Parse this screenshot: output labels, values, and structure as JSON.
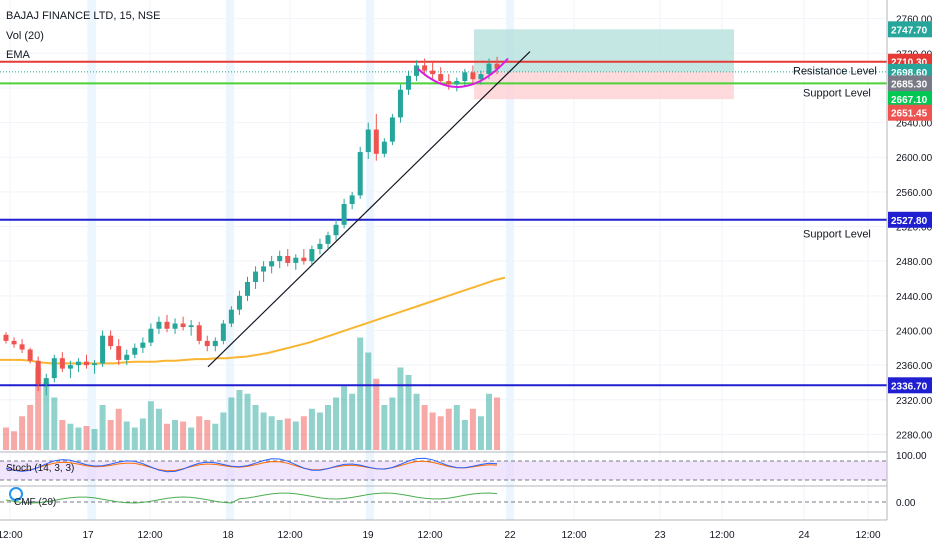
{
  "header": {
    "title": "BAJAJ FINANCE LTD, 15, NSE",
    "vol_label": "Vol (20)",
    "ema_label": "EMA"
  },
  "indicators": {
    "stoch_label": "Stoch (14, 3, 3)",
    "cmf_label": "CMF (20)",
    "stoch_axis_label": "100.00",
    "cmf_axis_label": "0.00"
  },
  "chart_data": {
    "type": "candlestick",
    "symbol": "BAJAJ FINANCE LTD",
    "interval": "15",
    "exchange": "NSE",
    "y_ticks": [
      2280,
      2320,
      2360,
      2400,
      2440,
      2480,
      2520,
      2560,
      2600,
      2640,
      2680,
      2720,
      2760
    ],
    "y_tick_labels": [
      "2280.00",
      "2320.00",
      "2360.00",
      "2400.00",
      "2440.00",
      "2480.00",
      "2520.00",
      "2560.00",
      "2600.00",
      "2640.00",
      "2680.00",
      "2720.00",
      "2760.00"
    ],
    "x_tick_labels": [
      "12:00",
      "17",
      "12:00",
      "18",
      "12:00",
      "19",
      "12:00",
      "22",
      "12:00",
      "23",
      "12:00",
      "24",
      "12:00"
    ],
    "price_tags": [
      {
        "value": 2747.7,
        "label": "2747.70",
        "color": "#26a69a"
      },
      {
        "value": 2710.3,
        "label": "2710.30",
        "color": "#e53935"
      },
      {
        "value": 2698.6,
        "label": "2698.60",
        "color": "#26a69a"
      },
      {
        "value": 2685.3,
        "label": "2685.30",
        "color": "#787b86"
      },
      {
        "value": 2667.1,
        "label": "2667.10",
        "color": "#00c853"
      },
      {
        "value": 2651.45,
        "label": "2651.45",
        "color": "#ef5350"
      },
      {
        "value": 2527.8,
        "label": "2527.80",
        "color": "#1f1fd1"
      },
      {
        "value": 2336.7,
        "label": "2336.70",
        "color": "#1f1fd1"
      }
    ],
    "horizontal_levels": [
      {
        "value": 2710.3,
        "color": "#e53935"
      },
      {
        "value": 2685.3,
        "color": "#4cd137"
      },
      {
        "value": 2527.8,
        "color": "#1f1fd1"
      },
      {
        "value": 2336.7,
        "color": "#1f1fd1"
      }
    ],
    "annotations": [
      {
        "text": "Resistance Level",
        "value": 2700
      },
      {
        "text": "Support Level",
        "value": 2675
      },
      {
        "text": "Support Level",
        "value": 2512
      }
    ],
    "position_box": {
      "target": 2747.7,
      "entry": 2698.6,
      "stop": 2667.1
    },
    "candles": [
      [
        2395,
        2398,
        2385,
        2388
      ],
      [
        2388,
        2392,
        2380,
        2384
      ],
      [
        2384,
        2390,
        2374,
        2378
      ],
      [
        2378,
        2380,
        2362,
        2365
      ],
      [
        2365,
        2370,
        2330,
        2338
      ],
      [
        2338,
        2350,
        2325,
        2345
      ],
      [
        2345,
        2372,
        2340,
        2368
      ],
      [
        2368,
        2375,
        2352,
        2356
      ],
      [
        2356,
        2365,
        2345,
        2360
      ],
      [
        2360,
        2368,
        2352,
        2364
      ],
      [
        2364,
        2372,
        2356,
        2360
      ],
      [
        2360,
        2366,
        2350,
        2362
      ],
      [
        2362,
        2400,
        2358,
        2394
      ],
      [
        2394,
        2400,
        2378,
        2382
      ],
      [
        2382,
        2390,
        2360,
        2366
      ],
      [
        2366,
        2378,
        2360,
        2372
      ],
      [
        2372,
        2385,
        2368,
        2380
      ],
      [
        2380,
        2392,
        2374,
        2386
      ],
      [
        2386,
        2408,
        2382,
        2402
      ],
      [
        2402,
        2416,
        2396,
        2410
      ],
      [
        2410,
        2418,
        2398,
        2402
      ],
      [
        2402,
        2414,
        2396,
        2408
      ],
      [
        2408,
        2416,
        2400,
        2404
      ],
      [
        2404,
        2412,
        2394,
        2406
      ],
      [
        2406,
        2410,
        2384,
        2388
      ],
      [
        2388,
        2394,
        2376,
        2382
      ],
      [
        2382,
        2392,
        2376,
        2388
      ],
      [
        2388,
        2412,
        2384,
        2408
      ],
      [
        2408,
        2428,
        2404,
        2424
      ],
      [
        2424,
        2446,
        2418,
        2440
      ],
      [
        2440,
        2462,
        2434,
        2456
      ],
      [
        2456,
        2474,
        2448,
        2468
      ],
      [
        2468,
        2480,
        2456,
        2474
      ],
      [
        2474,
        2486,
        2466,
        2480
      ],
      [
        2480,
        2492,
        2472,
        2486
      ],
      [
        2486,
        2494,
        2474,
        2478
      ],
      [
        2478,
        2488,
        2470,
        2484
      ],
      [
        2484,
        2494,
        2476,
        2480
      ],
      [
        2480,
        2498,
        2476,
        2494
      ],
      [
        2494,
        2506,
        2488,
        2500
      ],
      [
        2500,
        2514,
        2494,
        2510
      ],
      [
        2510,
        2528,
        2504,
        2522
      ],
      [
        2522,
        2552,
        2518,
        2546
      ],
      [
        2546,
        2560,
        2540,
        2556
      ],
      [
        2556,
        2612,
        2552,
        2606
      ],
      [
        2606,
        2640,
        2598,
        2632
      ],
      [
        2632,
        2650,
        2596,
        2604
      ],
      [
        2604,
        2622,
        2600,
        2618
      ],
      [
        2618,
        2650,
        2614,
        2646
      ],
      [
        2646,
        2684,
        2640,
        2678
      ],
      [
        2678,
        2700,
        2672,
        2694
      ],
      [
        2694,
        2712,
        2688,
        2706
      ],
      [
        2706,
        2714,
        2694,
        2700
      ],
      [
        2700,
        2710,
        2690,
        2696
      ],
      [
        2696,
        2704,
        2684,
        2688
      ],
      [
        2688,
        2696,
        2678,
        2684
      ],
      [
        2684,
        2692,
        2676,
        2688
      ],
      [
        2688,
        2702,
        2682,
        2698
      ],
      [
        2698,
        2706,
        2684,
        2690
      ],
      [
        2690,
        2700,
        2684,
        2696
      ],
      [
        2696,
        2714,
        2690,
        2708
      ],
      [
        2708,
        2716,
        2696,
        2702
      ]
    ],
    "volumes": [
      30,
      25,
      45,
      60,
      110,
      90,
      70,
      40,
      35,
      30,
      32,
      28,
      60,
      40,
      55,
      38,
      30,
      42,
      65,
      55,
      35,
      40,
      38,
      30,
      45,
      40,
      35,
      50,
      70,
      80,
      75,
      60,
      50,
      45,
      40,
      42,
      38,
      45,
      55,
      50,
      60,
      70,
      85,
      75,
      150,
      130,
      95,
      60,
      70,
      110,
      100,
      75,
      60,
      50,
      45,
      55,
      60,
      40,
      55,
      45,
      75,
      70
    ],
    "ema_values": [
      2366,
      2366,
      2366,
      2365,
      2363,
      2362,
      2362,
      2362,
      2362,
      2362,
      2362,
      2362,
      2363,
      2364,
      2364,
      2364,
      2365,
      2365,
      2366,
      2367,
      2367,
      2368,
      2368,
      2369,
      2370,
      2372,
      2374,
      2377,
      2380,
      2383,
      2386,
      2390,
      2394,
      2398,
      2402,
      2406,
      2410,
      2414,
      2418,
      2422,
      2426,
      2430,
      2434,
      2438,
      2442,
      2446,
      2450,
      2454,
      2458,
      2461
    ]
  },
  "colors": {
    "up": "#26a69a",
    "down": "#ef5350",
    "ema": "#f9b531",
    "trendline": "#131722",
    "cup": "#d91de0",
    "stoch_k": "#2962ff",
    "stoch_d": "#ff6d00",
    "cmf": "#4caf50",
    "stoch_band": "#e7d3fb"
  }
}
